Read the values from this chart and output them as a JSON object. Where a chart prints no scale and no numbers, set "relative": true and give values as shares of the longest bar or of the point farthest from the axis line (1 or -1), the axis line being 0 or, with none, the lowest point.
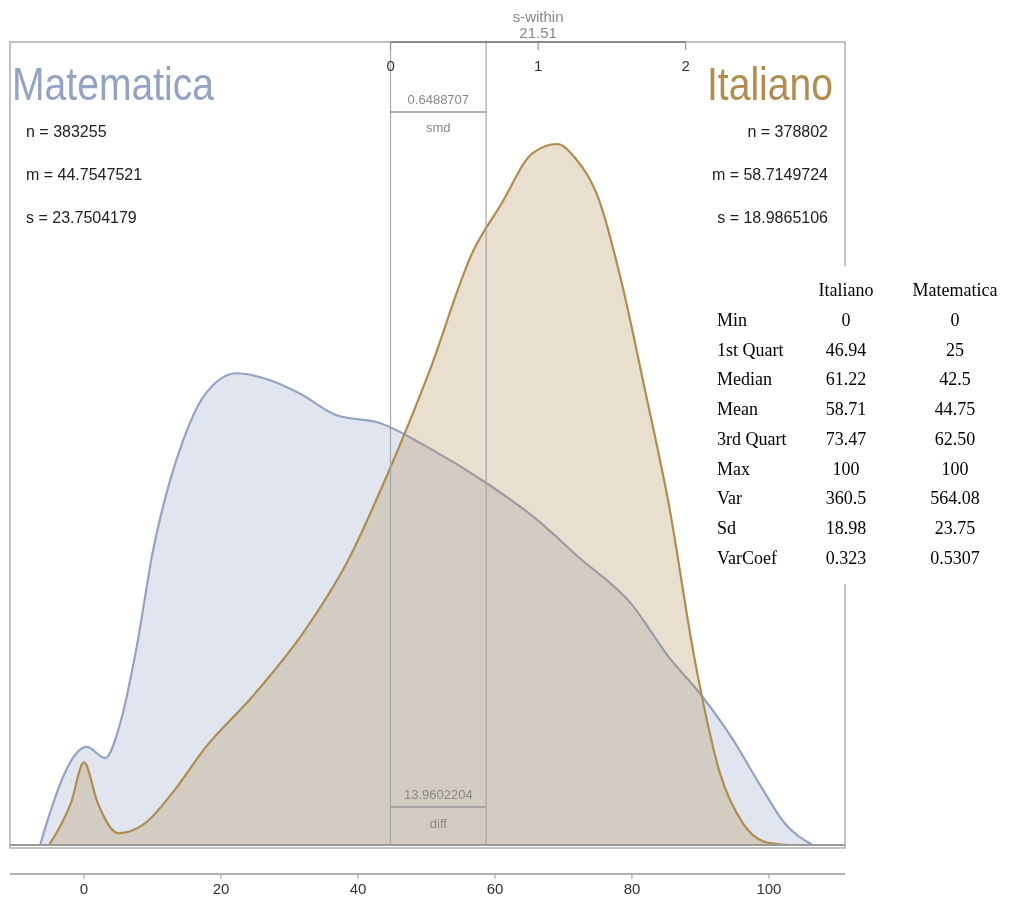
{
  "chart_data": [
    {
      "type": "area",
      "relative": true,
      "x2label": "s-within",
      "xlim": [
        -10.8,
        111.1
      ],
      "xticks": [
        0,
        20,
        40,
        60,
        80,
        100
      ],
      "x2lim": [
        -2.58,
        3.08
      ],
      "x2ticks": [
        0,
        1,
        2
      ],
      "series": [
        {
          "name": "Matematica",
          "color": "#94a3c4",
          "x": [
            -6.4,
            -6.1,
            0.4,
            3.1,
            5.3,
            7.7,
            10.1,
            12.6,
            14.5,
            17.4,
            22.3,
            27.2,
            31.5,
            36.9,
            43.2,
            49.9,
            58.8,
            65.5,
            72.4,
            79.9,
            85.3,
            90.1,
            94.7,
            98.8,
            102.3,
            106.4
          ],
          "values": [
            0,
            0.01,
            0.14,
            0.124,
            0.174,
            0.283,
            0.421,
            0.521,
            0.578,
            0.639,
            0.673,
            0.663,
            0.644,
            0.613,
            0.602,
            0.569,
            0.516,
            0.469,
            0.409,
            0.344,
            0.269,
            0.214,
            0.151,
            0.084,
            0.031,
            0
          ]
        },
        {
          "name": "Italiano",
          "color": "#b08d4e",
          "x": [
            -5.1,
            -1.9,
            0,
            2,
            5,
            8.9,
            12.8,
            17.8,
            24.7,
            32.1,
            38.5,
            44.4,
            50.4,
            56.8,
            60.9,
            65.5,
            69.1,
            71.7,
            75.2,
            78.5,
            81.9,
            85.3,
            89.3,
            92.8,
            96.2,
            99.6,
            102.9
          ],
          "values": [
            0,
            0.06,
            0.118,
            0.06,
            0.017,
            0.031,
            0.073,
            0.14,
            0.213,
            0.304,
            0.405,
            0.531,
            0.675,
            0.847,
            0.914,
            0.987,
            1,
            0.98,
            0.92,
            0.802,
            0.649,
            0.49,
            0.257,
            0.104,
            0.031,
            0.004,
            0
          ]
        }
      ],
      "ref_lines": [
        {
          "axis": "x",
          "value": 44.75,
          "color": "#a8a8a8"
        },
        {
          "axis": "x",
          "value": 58.71,
          "color": "#a8a8a8"
        }
      ],
      "annotations": [
        "n = 383255",
        "m = 44.7547521",
        "s = 23.7504179",
        "n = 378802",
        "m = 58.7149724",
        "s = 18.9865106",
        "0.6488707",
        "smd",
        "13.9602204",
        "diff",
        "21.51"
      ]
    },
    {
      "type": "other",
      "categories": [
        "Min",
        "1st Quart",
        "Median",
        "Mean",
        "3rd Quart",
        "Max",
        "Var",
        "Sd",
        "VarCoef"
      ],
      "series": [
        {
          "name": "Italiano",
          "values": [
            0,
            46.94,
            61.22,
            58.71,
            73.47,
            100,
            360.5,
            18.98,
            0.323
          ],
          "value_labels": [
            "0",
            "46.94",
            "61.22",
            "58.71",
            "73.47",
            "100",
            "360.5",
            "18.98",
            "0.323"
          ]
        },
        {
          "name": "Matematica",
          "values": [
            0,
            25,
            42.5,
            44.75,
            62.5,
            100,
            564.08,
            23.75,
            0.5307
          ],
          "value_labels": [
            "0",
            "25",
            "42.5",
            "44.75",
            "62.50",
            "100",
            "564.08",
            "23.75",
            "0.5307"
          ]
        }
      ]
    }
  ]
}
